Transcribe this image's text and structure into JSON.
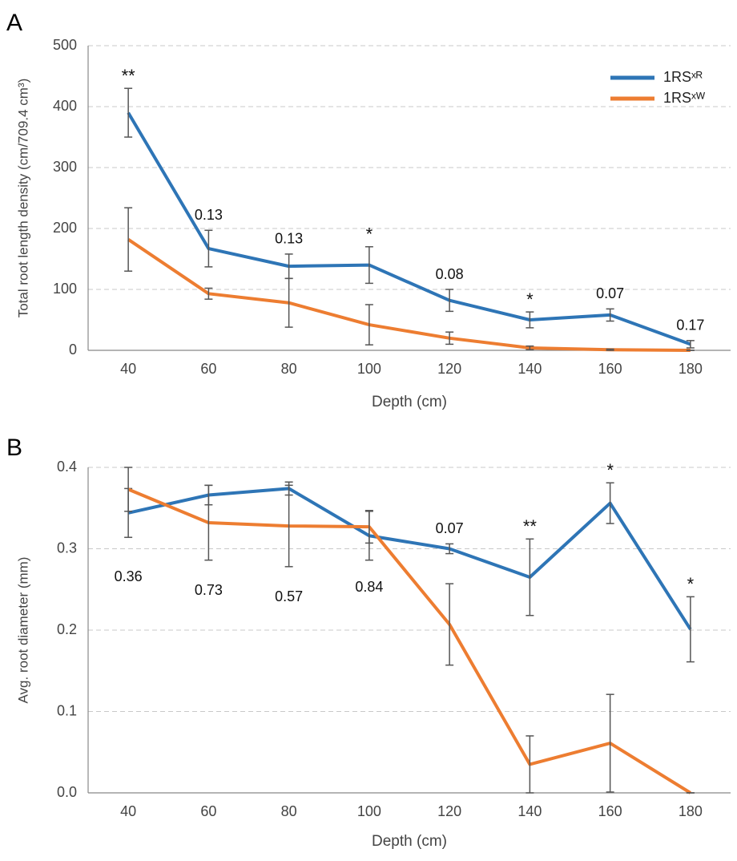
{
  "chart_data": [
    {
      "type": "line",
      "panel": "A",
      "categories": [
        "40",
        "60",
        "80",
        "100",
        "120",
        "140",
        "160",
        "180"
      ],
      "series": [
        {
          "name": "1RSˣᴿ",
          "color": "#2e75b6",
          "values": [
            390,
            167,
            138,
            140,
            82,
            50,
            58,
            10
          ],
          "errors": [
            40,
            30,
            20,
            30,
            18,
            13,
            10,
            6
          ]
        },
        {
          "name": "1RSˣᵂ",
          "color": "#ed7d31",
          "values": [
            182,
            93,
            78,
            42,
            20,
            4,
            1,
            0
          ],
          "errors": [
            52,
            9,
            40,
            33,
            10,
            3,
            1,
            0
          ]
        }
      ],
      "annotations": [
        "**",
        "0.13",
        "0.13",
        "*",
        "0.08",
        "*",
        "0.07",
        "0.17"
      ],
      "ylim": [
        0,
        500
      ],
      "yticks": [
        0,
        100,
        200,
        300,
        400,
        500
      ],
      "grid": true,
      "legend": "upper right",
      "y_label": "Total root length density (cm/709.4 cm³)",
      "x_label": "Depth (cm)"
    },
    {
      "type": "line",
      "panel": "B",
      "categories": [
        "40",
        "60",
        "80",
        "100",
        "120",
        "140",
        "160",
        "180"
      ],
      "series": [
        {
          "color": "#2e75b6",
          "values": [
            0.344,
            0.366,
            0.374,
            0.316,
            0.3,
            0.265,
            0.356,
            0.201
          ],
          "errors": [
            0.03,
            0.012,
            0.008,
            0.03,
            0.006,
            0.047,
            0.025,
            0.04
          ]
        },
        {
          "color": "#ed7d31",
          "values": [
            0.373,
            0.332,
            0.328,
            0.327,
            0.207,
            0.035,
            0.061,
            0
          ],
          "errors": [
            0.027,
            0.046,
            0.05,
            0.02,
            0.05,
            0.035,
            0.06,
            0
          ]
        }
      ],
      "annotations": [
        "0.36",
        "0.73",
        "0.57",
        "0.84",
        "0.07",
        "**",
        "*",
        "*"
      ],
      "ylim": [
        0,
        0.4
      ],
      "yticks": [
        {
          "value": 0,
          "label": "0.0"
        },
        0.1,
        0.2,
        0.3,
        0.4
      ],
      "grid": true,
      "y_label": "Avg. root diameter (mm)",
      "x_label": "Depth (cm)"
    }
  ]
}
